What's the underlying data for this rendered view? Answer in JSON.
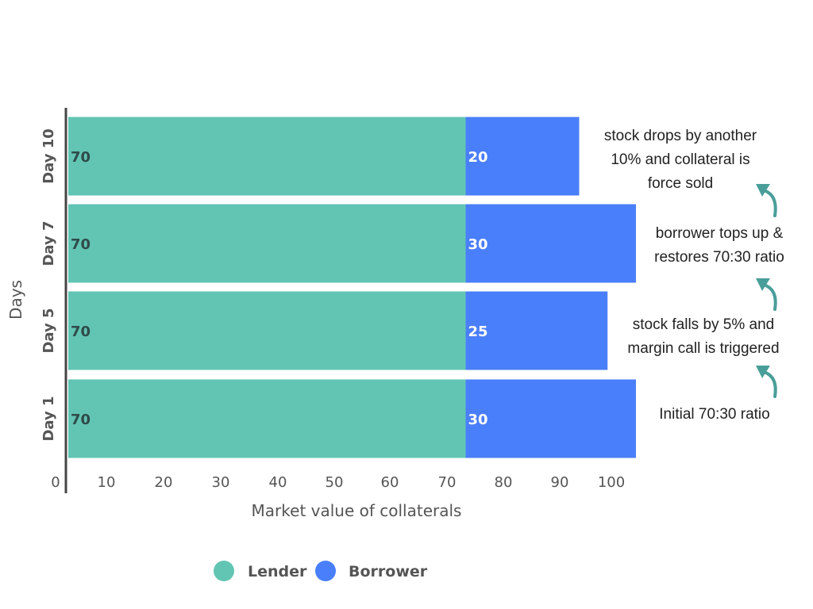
{
  "chart_data": {
    "type": "bar",
    "orientation": "horizontal",
    "stacked": true,
    "categories": [
      "Day 1",
      "Day 5",
      "Day 7",
      "Day 10"
    ],
    "series": [
      {
        "name": "Lender",
        "values": [
          70,
          70,
          70,
          70
        ],
        "color": "#62c5b3"
      },
      {
        "name": "Borrower",
        "values": [
          30,
          25,
          30,
          20
        ],
        "color": "#4a7ffb"
      }
    ],
    "xlabel": "Market value of collaterals",
    "ylabel": "Days",
    "xlim": [
      0,
      100
    ],
    "xticks": [
      0,
      10,
      20,
      30,
      40,
      50,
      60,
      70,
      80,
      90,
      100
    ],
    "grid": false,
    "legend_position": "bottom",
    "annotations": [
      {
        "category": "Day 1",
        "lines": [
          "Initial 70:30 ratio"
        ]
      },
      {
        "category": "Day 5",
        "lines": [
          "stock falls by 5% and",
          "margin call is triggered"
        ]
      },
      {
        "category": "Day 7",
        "lines": [
          "borrower tops up &",
          "restores 70:30 ratio"
        ]
      },
      {
        "category": "Day 10",
        "lines": [
          "stock drops by another",
          "10% and collateral is",
          "force sold"
        ]
      }
    ],
    "arrow_color": "#4a9e9a"
  }
}
